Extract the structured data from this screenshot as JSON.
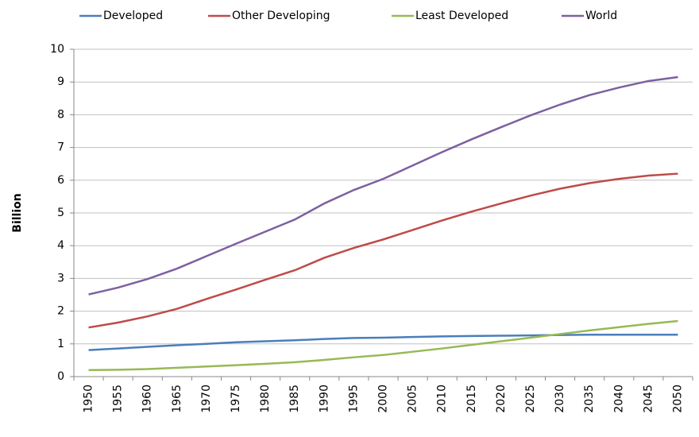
{
  "chart_data": {
    "type": "line",
    "y_label": "Billion",
    "categories": [
      "1950",
      "1955",
      "1960",
      "1965",
      "1970",
      "1975",
      "1980",
      "1985",
      "1990",
      "1995",
      "2000",
      "2005",
      "2010",
      "2015",
      "2020",
      "2025",
      "2030",
      "2035",
      "2040",
      "2045",
      "2050"
    ],
    "series": [
      {
        "name": "Developed",
        "color": "#4a7ebb",
        "values": [
          0.81,
          0.86,
          0.91,
          0.96,
          1.0,
          1.05,
          1.08,
          1.11,
          1.15,
          1.18,
          1.19,
          1.21,
          1.23,
          1.24,
          1.25,
          1.26,
          1.27,
          1.28,
          1.28,
          1.28,
          1.28
        ]
      },
      {
        "name": "Other Developing",
        "color": "#be4b48",
        "values": [
          1.5,
          1.65,
          1.84,
          2.07,
          2.37,
          2.66,
          2.96,
          3.25,
          3.63,
          3.93,
          4.19,
          4.48,
          4.77,
          5.04,
          5.29,
          5.53,
          5.74,
          5.91,
          6.04,
          6.14,
          6.2
        ]
      },
      {
        "name": "Least Developed",
        "color": "#98b954",
        "values": [
          0.2,
          0.21,
          0.23,
          0.27,
          0.31,
          0.35,
          0.39,
          0.44,
          0.51,
          0.59,
          0.66,
          0.76,
          0.86,
          0.97,
          1.08,
          1.19,
          1.3,
          1.41,
          1.51,
          1.61,
          1.7
        ]
      },
      {
        "name": "World",
        "color": "#7d60a0",
        "values": [
          2.51,
          2.72,
          2.98,
          3.3,
          3.68,
          4.06,
          4.43,
          4.8,
          5.29,
          5.7,
          6.04,
          6.45,
          6.86,
          7.25,
          7.62,
          7.98,
          8.31,
          8.6,
          8.83,
          9.03,
          9.15
        ]
      }
    ],
    "ylim": [
      0,
      10
    ],
    "yticks": [
      0,
      1,
      2,
      3,
      4,
      5,
      6,
      7,
      8,
      9,
      10
    ],
    "grid": true,
    "legend": "top"
  }
}
